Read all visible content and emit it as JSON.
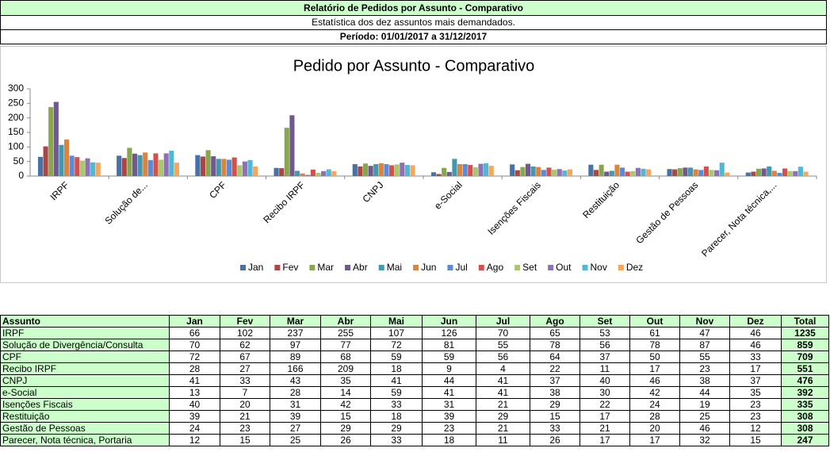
{
  "header": {
    "title": "Relatório de Pedidos por Assunto - Comparativo",
    "subtitle": "Estatística dos dez assuntos mais demandados.",
    "period": "Período: 01/01/2017 a 31/12/2017"
  },
  "chart_data": {
    "type": "bar",
    "title": "Pedido por Assunto - Comparativo",
    "categories": [
      "IRPF",
      "Solução de...",
      "CPF",
      "Recibo IRPF",
      "CNPJ",
      "e-Social",
      "Isenções Fiscais",
      "Restituição",
      "Gestão de Pessoas",
      "Parecer, Nota técnica,..."
    ],
    "series": [
      {
        "name": "Jan",
        "color": "#4572a7",
        "values": [
          66,
          70,
          72,
          28,
          41,
          13,
          40,
          39,
          24,
          12
        ]
      },
      {
        "name": "Fev",
        "color": "#aa4643",
        "values": [
          102,
          62,
          67,
          27,
          33,
          7,
          20,
          21,
          23,
          15
        ]
      },
      {
        "name": "Mar",
        "color": "#89a54e",
        "values": [
          237,
          97,
          89,
          166,
          43,
          28,
          31,
          39,
          27,
          25
        ]
      },
      {
        "name": "Abr",
        "color": "#71588f",
        "values": [
          255,
          77,
          68,
          209,
          35,
          14,
          42,
          15,
          29,
          26
        ]
      },
      {
        "name": "Mai",
        "color": "#4198af",
        "values": [
          107,
          72,
          59,
          18,
          41,
          59,
          33,
          18,
          29,
          33
        ]
      },
      {
        "name": "Jun",
        "color": "#db843d",
        "values": [
          126,
          81,
          59,
          9,
          44,
          41,
          31,
          39,
          23,
          18
        ]
      },
      {
        "name": "Jul",
        "color": "#5b8bd4",
        "values": [
          70,
          55,
          56,
          4,
          41,
          41,
          21,
          29,
          21,
          11
        ]
      },
      {
        "name": "Ago",
        "color": "#d4504d",
        "values": [
          65,
          78,
          64,
          22,
          37,
          38,
          29,
          15,
          33,
          26
        ]
      },
      {
        "name": "Set",
        "color": "#a8c86a",
        "values": [
          53,
          56,
          37,
          11,
          40,
          30,
          22,
          17,
          21,
          17
        ]
      },
      {
        "name": "Out",
        "color": "#9070b4",
        "values": [
          61,
          78,
          50,
          17,
          46,
          42,
          24,
          28,
          20,
          17
        ]
      },
      {
        "name": "Nov",
        "color": "#4fb8d4",
        "values": [
          47,
          87,
          55,
          23,
          38,
          44,
          19,
          25,
          46,
          32
        ]
      },
      {
        "name": "Dez",
        "color": "#f9a55a",
        "values": [
          46,
          46,
          33,
          17,
          37,
          35,
          23,
          23,
          12,
          15
        ]
      }
    ],
    "ylim": [
      0,
      300
    ],
    "yticks": [
      0,
      50,
      100,
      150,
      200,
      250,
      300
    ]
  },
  "table": {
    "headers": [
      "Assunto",
      "Jan",
      "Fev",
      "Mar",
      "Abr",
      "Mai",
      "Jun",
      "Jul",
      "Ago",
      "Set",
      "Out",
      "Nov",
      "Dez",
      "Total"
    ],
    "rows": [
      [
        "IRPF",
        66,
        102,
        237,
        255,
        107,
        126,
        70,
        65,
        53,
        61,
        47,
        46,
        1235
      ],
      [
        "Solução de Divergência/Consulta",
        70,
        62,
        97,
        77,
        72,
        81,
        55,
        78,
        56,
        78,
        87,
        46,
        859
      ],
      [
        "CPF",
        72,
        67,
        89,
        68,
        59,
        59,
        56,
        64,
        37,
        50,
        55,
        33,
        709
      ],
      [
        "Recibo IRPF",
        28,
        27,
        166,
        209,
        18,
        9,
        4,
        22,
        11,
        17,
        23,
        17,
        551
      ],
      [
        "CNPJ",
        41,
        33,
        43,
        35,
        41,
        44,
        41,
        37,
        40,
        46,
        38,
        37,
        476
      ],
      [
        "e-Social",
        13,
        7,
        28,
        14,
        59,
        41,
        41,
        38,
        30,
        42,
        44,
        35,
        392
      ],
      [
        "Isenções Fiscais",
        40,
        20,
        31,
        42,
        33,
        31,
        21,
        29,
        22,
        24,
        19,
        23,
        335
      ],
      [
        "Restituição",
        39,
        21,
        39,
        15,
        18,
        39,
        29,
        15,
        17,
        28,
        25,
        23,
        308
      ],
      [
        "Gestão de Pessoas",
        24,
        23,
        27,
        29,
        29,
        23,
        21,
        33,
        21,
        20,
        46,
        12,
        308
      ],
      [
        "Parecer, Nota técnica, Portaria",
        12,
        15,
        25,
        26,
        33,
        18,
        11,
        26,
        17,
        17,
        32,
        15,
        247
      ]
    ]
  }
}
